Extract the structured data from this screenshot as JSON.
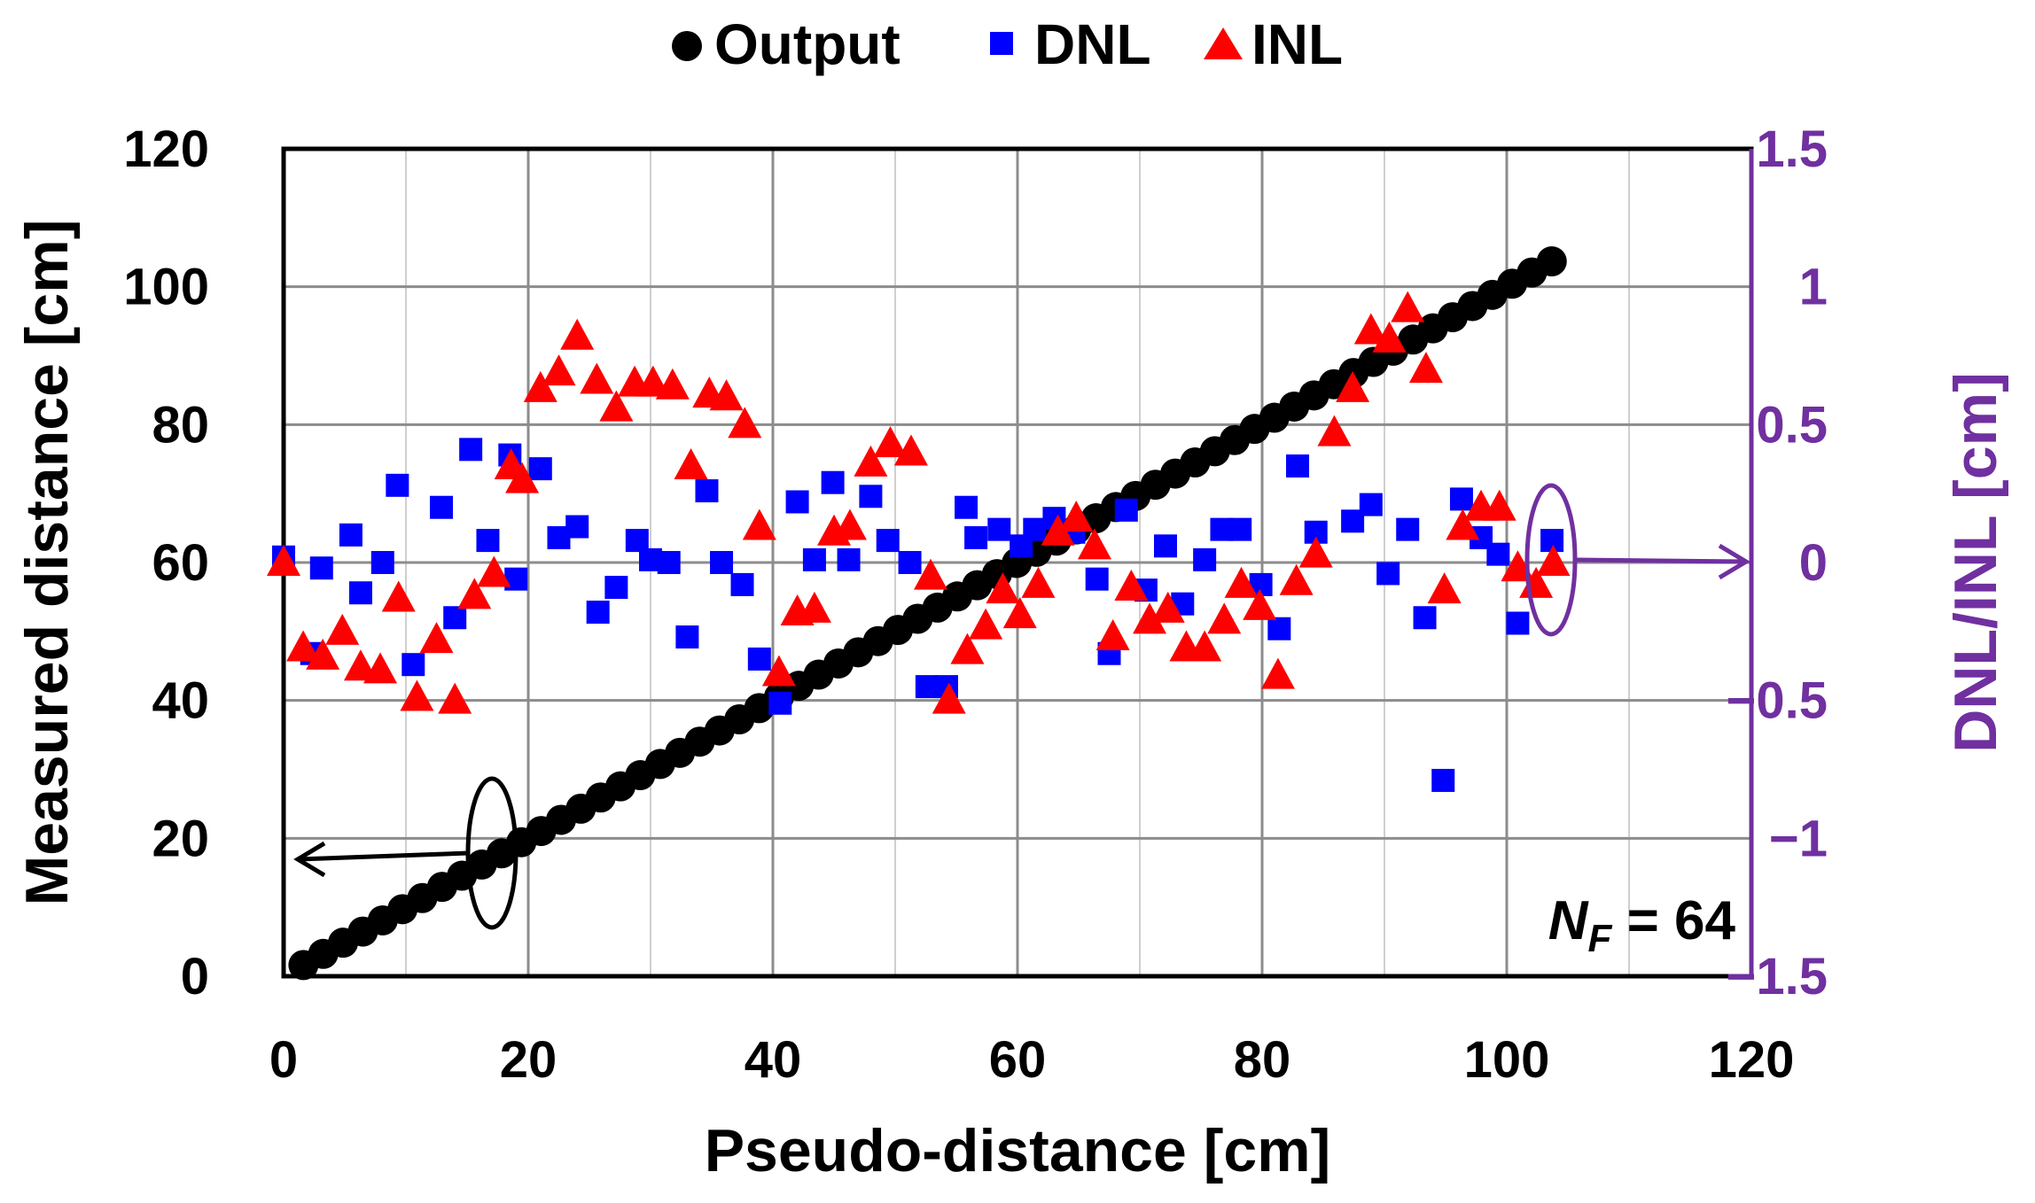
{
  "chart_data": {
    "type": "scatter",
    "title": "",
    "xlabel": "Pseudo-distance [cm]",
    "ylabel": "Measured distance [cm]",
    "y2label": "DNL/INL [cm]",
    "xlim": [
      0,
      120
    ],
    "ylim": [
      0,
      120
    ],
    "y2lim": [
      -1.5,
      1.5
    ],
    "xticks": [
      0,
      20,
      40,
      60,
      80,
      100,
      120
    ],
    "yticks": [
      0,
      20,
      40,
      60,
      80,
      100,
      120
    ],
    "y2ticks": [
      "-1.5",
      "-1",
      "-0.5",
      "0",
      "0.5",
      "1",
      "1.5"
    ],
    "grid": true,
    "legend_position": "top",
    "annotation": {
      "symbol": "N",
      "subscript": "F",
      "rest": " = 64"
    },
    "colors": {
      "output": "#000000",
      "dnl": "#0000ff",
      "inl": "#ff0000",
      "right_axis": "#7030a0"
    },
    "series": [
      {
        "name": "Output",
        "axis": "left",
        "marker": "circle",
        "x_start": 1.62,
        "x_step": 1.62,
        "count": 64,
        "y_start": 1.62,
        "y_step": 1.62
      },
      {
        "name": "DNL",
        "axis": "right",
        "marker": "square",
        "points": [
          [
            0,
            0.02
          ],
          [
            2.3,
            -0.33
          ],
          [
            3.1,
            -0.02
          ],
          [
            5.5,
            0.1
          ],
          [
            6.3,
            -0.11
          ],
          [
            8.1,
            0.0
          ],
          [
            9.3,
            0.28
          ],
          [
            10.6,
            -0.37
          ],
          [
            12.9,
            0.2
          ],
          [
            14.0,
            -0.2
          ],
          [
            15.3,
            0.41
          ],
          [
            16.7,
            0.08
          ],
          [
            18.5,
            0.39
          ],
          [
            19.0,
            -0.06
          ],
          [
            21.0,
            0.34
          ],
          [
            22.5,
            0.09
          ],
          [
            24.0,
            0.13
          ],
          [
            25.7,
            -0.18
          ],
          [
            27.2,
            -0.09
          ],
          [
            28.9,
            0.08
          ],
          [
            30.0,
            0.01
          ],
          [
            31.5,
            0.0
          ],
          [
            33.0,
            -0.27
          ],
          [
            34.6,
            0.26
          ],
          [
            35.8,
            0.0
          ],
          [
            37.5,
            -0.08
          ],
          [
            38.9,
            -0.35
          ],
          [
            40.6,
            -0.51
          ],
          [
            42.0,
            0.22
          ],
          [
            43.4,
            0.01
          ],
          [
            44.9,
            0.29
          ],
          [
            46.2,
            0.01
          ],
          [
            48.0,
            0.24
          ],
          [
            49.4,
            0.08
          ],
          [
            51.2,
            0.0
          ],
          [
            52.6,
            -0.45
          ],
          [
            54.2,
            -0.45
          ],
          [
            55.8,
            0.2
          ],
          [
            56.6,
            0.09
          ],
          [
            58.5,
            0.12
          ],
          [
            60.3,
            0.06
          ],
          [
            61.4,
            0.12
          ],
          [
            63.0,
            0.16
          ],
          [
            64.6,
            0.11
          ],
          [
            66.5,
            -0.06
          ],
          [
            67.5,
            -0.33
          ],
          [
            68.9,
            0.19
          ],
          [
            70.5,
            -0.1
          ],
          [
            72.1,
            0.06
          ],
          [
            73.5,
            -0.15
          ],
          [
            75.3,
            0.01
          ],
          [
            76.7,
            0.12
          ],
          [
            78.2,
            0.12
          ],
          [
            79.9,
            -0.08
          ],
          [
            81.4,
            -0.24
          ],
          [
            82.9,
            0.35
          ],
          [
            84.4,
            0.11
          ],
          [
            87.4,
            0.15
          ],
          [
            88.9,
            0.21
          ],
          [
            90.3,
            -0.04
          ],
          [
            91.9,
            0.12
          ],
          [
            93.3,
            -0.2
          ],
          [
            94.8,
            -0.79
          ],
          [
            96.3,
            0.23
          ],
          [
            97.9,
            0.09
          ],
          [
            99.3,
            0.03
          ],
          [
            100.9,
            -0.22
          ],
          [
            103.7,
            0.08
          ]
        ]
      },
      {
        "name": "INL",
        "axis": "right",
        "marker": "triangle",
        "points": [
          [
            0,
            0.0
          ],
          [
            1.6,
            -0.31
          ],
          [
            3.2,
            -0.34
          ],
          [
            4.8,
            -0.25
          ],
          [
            6.3,
            -0.38
          ],
          [
            7.9,
            -0.39
          ],
          [
            9.4,
            -0.13
          ],
          [
            10.9,
            -0.49
          ],
          [
            12.5,
            -0.28
          ],
          [
            14.0,
            -0.5
          ],
          [
            15.6,
            -0.12
          ],
          [
            17.2,
            -0.04
          ],
          [
            18.6,
            0.35
          ],
          [
            19.5,
            0.3
          ],
          [
            21.0,
            0.63
          ],
          [
            22.5,
            0.69
          ],
          [
            24.0,
            0.82
          ],
          [
            25.6,
            0.66
          ],
          [
            27.2,
            0.56
          ],
          [
            28.7,
            0.65
          ],
          [
            30.2,
            0.65
          ],
          [
            31.8,
            0.64
          ],
          [
            33.3,
            0.35
          ],
          [
            34.8,
            0.61
          ],
          [
            36.2,
            0.6
          ],
          [
            37.7,
            0.5
          ],
          [
            38.9,
            0.13
          ],
          [
            40.5,
            -0.4
          ],
          [
            42.0,
            -0.18
          ],
          [
            43.4,
            -0.17
          ],
          [
            45.0,
            0.11
          ],
          [
            46.3,
            0.13
          ],
          [
            48.0,
            0.36
          ],
          [
            49.6,
            0.43
          ],
          [
            51.3,
            0.4
          ],
          [
            52.9,
            -0.05
          ],
          [
            54.4,
            -0.5
          ],
          [
            55.9,
            -0.32
          ],
          [
            57.4,
            -0.23
          ],
          [
            58.8,
            -0.1
          ],
          [
            60.2,
            -0.19
          ],
          [
            61.7,
            -0.08
          ],
          [
            63.3,
            0.11
          ],
          [
            64.8,
            0.16
          ],
          [
            66.3,
            0.06
          ],
          [
            67.8,
            -0.27
          ],
          [
            69.3,
            -0.09
          ],
          [
            70.8,
            -0.21
          ],
          [
            72.3,
            -0.17
          ],
          [
            73.8,
            -0.31
          ],
          [
            75.3,
            -0.31
          ],
          [
            76.9,
            -0.21
          ],
          [
            78.3,
            -0.08
          ],
          [
            79.8,
            -0.16
          ],
          [
            81.3,
            -0.41
          ],
          [
            82.8,
            -0.07
          ],
          [
            84.4,
            0.03
          ],
          [
            85.9,
            0.47
          ],
          [
            87.4,
            0.63
          ],
          [
            88.9,
            0.84
          ],
          [
            90.4,
            0.81
          ],
          [
            91.9,
            0.92
          ],
          [
            93.4,
            0.7
          ],
          [
            94.9,
            -0.1
          ],
          [
            96.4,
            0.13
          ],
          [
            97.9,
            0.2
          ],
          [
            99.4,
            0.2
          ],
          [
            100.9,
            -0.02
          ],
          [
            102.4,
            -0.08
          ],
          [
            103.8,
            0.0
          ]
        ]
      }
    ]
  }
}
